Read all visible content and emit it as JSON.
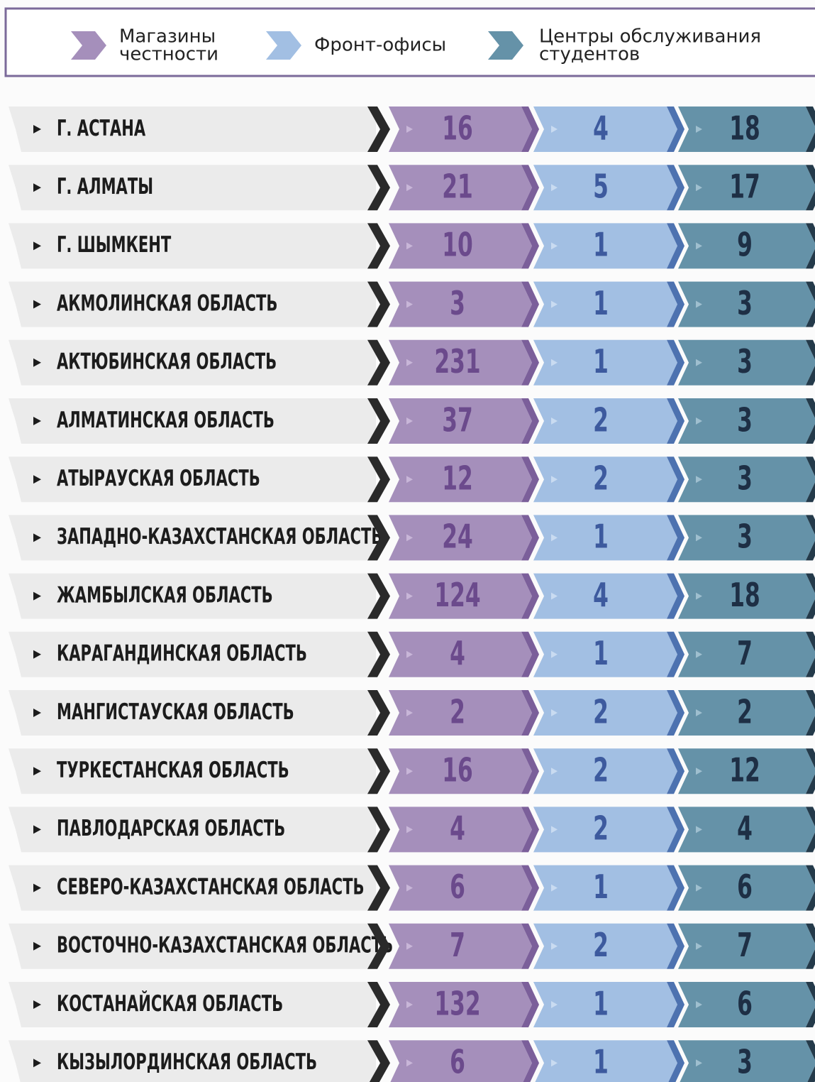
{
  "legend": [
    {
      "lines": [
        "Магазины",
        "честности"
      ]
    },
    {
      "lines": [
        "Фронт-офисы"
      ]
    },
    {
      "lines": [
        "Центры обслуживания",
        "студентов"
      ]
    }
  ],
  "table": {
    "rows": [
      [
        "Г. АСТАНА",
        "16",
        "4",
        "18"
      ],
      [
        "Г. АЛМАТЫ",
        "21",
        "5",
        "17"
      ],
      [
        "Г. ШЫМКЕНТ",
        "10",
        "1",
        "9"
      ],
      [
        "АКМОЛИНСКАЯ ОБЛАСТЬ",
        "3",
        "1",
        "3"
      ],
      [
        "АКТЮБИНСКАЯ ОБЛАСТЬ",
        "231",
        "1",
        "3"
      ],
      [
        "АЛМАТИНСКАЯ ОБЛАСТЬ",
        "37",
        "2",
        "3"
      ],
      [
        "АТЫРАУСКАЯ ОБЛАСТЬ",
        "12",
        "2",
        "3"
      ],
      [
        "ЗАПАДНО-КАЗАХСТАНСКАЯ ОБЛАСТЬ",
        "24",
        "1",
        "3"
      ],
      [
        "ЖАМБЫЛСКАЯ ОБЛАСТЬ",
        "124",
        "4",
        "18"
      ],
      [
        "КАРАГАНДИНСКАЯ ОБЛАСТЬ",
        "4",
        "1",
        "7"
      ],
      [
        "МАНГИСТАУСКАЯ ОБЛАСТЬ",
        "2",
        "2",
        "2"
      ],
      [
        "ТУРКЕСТАНСКАЯ ОБЛАСТЬ",
        "16",
        "2",
        "12"
      ],
      [
        "ПАВЛОДАРСКАЯ ОБЛАСТЬ",
        "4",
        "2",
        "4"
      ],
      [
        "СЕВЕРО-КАЗАХСТАНСКАЯ ОБЛАСТЬ",
        "6",
        "1",
        "6"
      ],
      [
        "ВОСТОЧНО-КАЗАХСТАНСКАЯ ОБЛАСТЬ",
        "7",
        "2",
        "7"
      ],
      [
        "КОСТАНАЙСКАЯ ОБЛАСТЬ",
        "132",
        "1",
        "6"
      ],
      [
        "КЫЗЫЛОРДИНСКАЯ ОБЛАСТЬ",
        "6",
        "1",
        "3"
      ]
    ]
  }
}
